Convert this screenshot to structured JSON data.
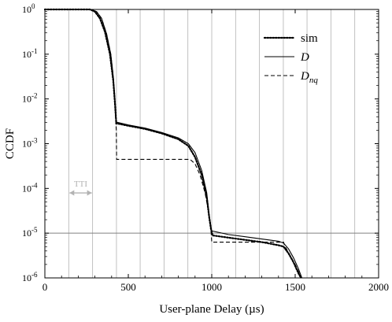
{
  "chart_data": {
    "type": "line",
    "xlabel": "User-plane Delay (µs)",
    "ylabel": "CCDF",
    "xlim": [
      0,
      2000
    ],
    "ylim_log10": [
      -6,
      0
    ],
    "yscale": "log",
    "x_ticks": [
      {
        "value": 0,
        "label": "0"
      },
      {
        "value": 500,
        "label": "500"
      },
      {
        "value": 1000,
        "label": "1000"
      },
      {
        "value": 1500,
        "label": "1500"
      },
      {
        "value": 2000,
        "label": "2000"
      }
    ],
    "y_ticks": [
      {
        "exp": 0,
        "base": "10",
        "sup": "0"
      },
      {
        "exp": -1,
        "base": "10",
        "sup": "-1"
      },
      {
        "exp": -2,
        "base": "10",
        "sup": "-2"
      },
      {
        "exp": -3,
        "base": "10",
        "sup": "-3"
      },
      {
        "exp": -4,
        "base": "10",
        "sup": "-4"
      },
      {
        "exp": -5,
        "base": "10",
        "sup": "-5"
      },
      {
        "exp": -6,
        "base": "10",
        "sup": "-6"
      }
    ],
    "vertical_grid_x": [
      143,
      286,
      429,
      571,
      714,
      857,
      1000,
      1143,
      1286,
      1429,
      1571,
      1714,
      1857
    ],
    "reference_line_y_log10": -5,
    "legend_position": "top-right",
    "legend": [
      {
        "main": "sim",
        "sub": "",
        "style": "dotted"
      },
      {
        "main": "D",
        "sub": "",
        "style": "solid"
      },
      {
        "main": "D",
        "sub": "nq",
        "style": "dashed"
      }
    ],
    "annotation": {
      "text": "TTI",
      "x_from": 143,
      "x_to": 286,
      "y_log10": -4.1
    },
    "series": [
      {
        "style": "dotted",
        "points": [
          [
            0,
            0
          ],
          [
            270,
            0
          ],
          [
            300,
            -0.05
          ],
          [
            330,
            -0.2
          ],
          [
            360,
            -0.5
          ],
          [
            390,
            -1.0
          ],
          [
            410,
            -1.6
          ],
          [
            420,
            -2.1
          ],
          [
            428,
            -2.55
          ],
          [
            435,
            -2.55
          ],
          [
            500,
            -2.6
          ],
          [
            600,
            -2.67
          ],
          [
            700,
            -2.77
          ],
          [
            800,
            -2.9
          ],
          [
            860,
            -3.05
          ],
          [
            900,
            -3.3
          ],
          [
            940,
            -3.7
          ],
          [
            970,
            -4.2
          ],
          [
            985,
            -4.65
          ],
          [
            995,
            -4.9
          ],
          [
            1005,
            -5.05
          ],
          [
            1100,
            -5.1
          ],
          [
            1200,
            -5.15
          ],
          [
            1300,
            -5.2
          ],
          [
            1400,
            -5.27
          ],
          [
            1430,
            -5.3
          ],
          [
            1460,
            -5.45
          ],
          [
            1490,
            -5.65
          ],
          [
            1520,
            -5.9
          ],
          [
            1535,
            -6
          ]
        ]
      },
      {
        "style": "solid",
        "points": [
          [
            0,
            0
          ],
          [
            280,
            0
          ],
          [
            310,
            -0.05
          ],
          [
            340,
            -0.2
          ],
          [
            370,
            -0.55
          ],
          [
            395,
            -1.0
          ],
          [
            410,
            -1.5
          ],
          [
            420,
            -2.0
          ],
          [
            427,
            -2.5
          ],
          [
            430,
            -2.52
          ],
          [
            500,
            -2.58
          ],
          [
            600,
            -2.65
          ],
          [
            700,
            -2.75
          ],
          [
            800,
            -2.87
          ],
          [
            860,
            -3.0
          ],
          [
            900,
            -3.2
          ],
          [
            940,
            -3.6
          ],
          [
            970,
            -4.1
          ],
          [
            985,
            -4.6
          ],
          [
            995,
            -4.85
          ],
          [
            1000,
            -4.95
          ],
          [
            1100,
            -5.03
          ],
          [
            1200,
            -5.08
          ],
          [
            1300,
            -5.13
          ],
          [
            1400,
            -5.18
          ],
          [
            1430,
            -5.22
          ],
          [
            1460,
            -5.35
          ],
          [
            1490,
            -5.55
          ],
          [
            1520,
            -5.8
          ],
          [
            1540,
            -6
          ]
        ]
      },
      {
        "style": "dashed",
        "points": [
          [
            0,
            0
          ],
          [
            280,
            0
          ],
          [
            310,
            -0.05
          ],
          [
            340,
            -0.2
          ],
          [
            370,
            -0.55
          ],
          [
            395,
            -1.0
          ],
          [
            410,
            -1.5
          ],
          [
            420,
            -2.2
          ],
          [
            428,
            -2.7
          ],
          [
            430,
            -3.35
          ],
          [
            860,
            -3.35
          ],
          [
            870,
            -3.35
          ],
          [
            900,
            -3.45
          ],
          [
            930,
            -3.7
          ],
          [
            960,
            -4.1
          ],
          [
            980,
            -4.5
          ],
          [
            993,
            -4.8
          ],
          [
            1000,
            -5.2
          ],
          [
            1430,
            -5.2
          ],
          [
            1440,
            -5.3
          ],
          [
            1470,
            -5.5
          ],
          [
            1500,
            -5.7
          ],
          [
            1525,
            -5.9
          ],
          [
            1535,
            -6
          ]
        ]
      }
    ]
  }
}
